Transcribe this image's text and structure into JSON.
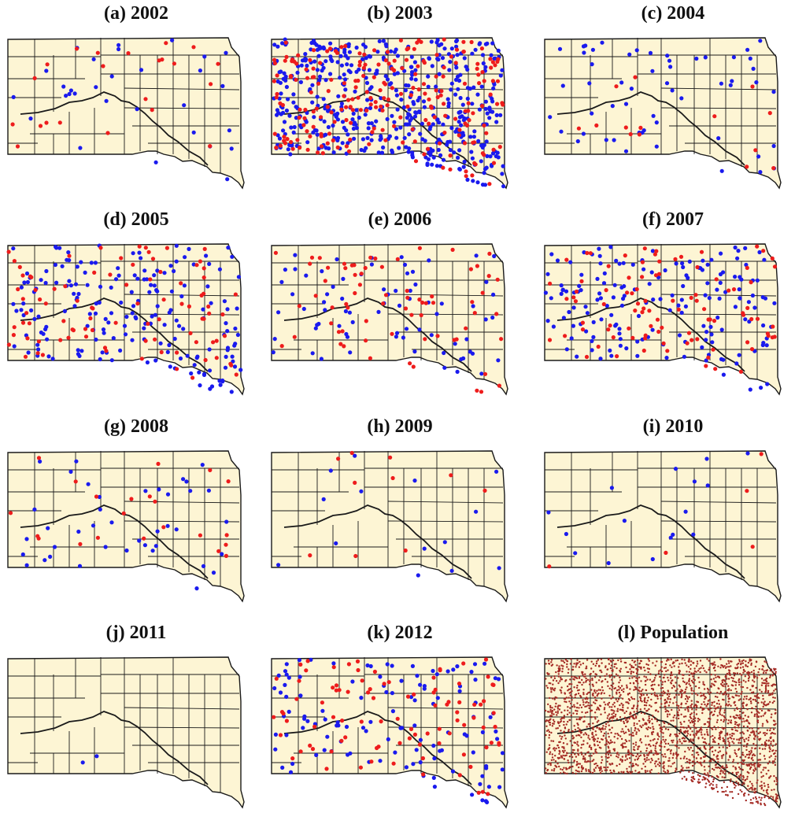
{
  "colors": {
    "land": "#fdf5d4",
    "border": "#1a1a1a",
    "dot_blue": "#1a1aee",
    "dot_red": "#ee1c1c",
    "population": "#a42a24"
  },
  "panels": [
    {
      "title": "(a) 2002",
      "density": {
        "blue": 30,
        "red": 22
      }
    },
    {
      "title": "(b) 2003",
      "density": {
        "blue": 520,
        "red": 230
      }
    },
    {
      "title": "(c) 2004",
      "density": {
        "blue": 55,
        "red": 14
      }
    },
    {
      "title": "(d) 2005",
      "density": {
        "blue": 190,
        "red": 90
      }
    },
    {
      "title": "(e) 2006",
      "density": {
        "blue": 75,
        "red": 70
      }
    },
    {
      "title": "(f) 2007",
      "density": {
        "blue": 170,
        "red": 95
      }
    },
    {
      "title": "(g) 2008",
      "density": {
        "blue": 40,
        "red": 22
      }
    },
    {
      "title": "(h) 2009",
      "density": {
        "blue": 14,
        "red": 10
      }
    },
    {
      "title": "(i) 2010",
      "density": {
        "blue": 16,
        "red": 5
      }
    },
    {
      "title": "(j) 2011",
      "density": {
        "blue": 2,
        "red": 0
      }
    },
    {
      "title": "(k) 2012",
      "density": {
        "blue": 120,
        "red": 95
      }
    },
    {
      "title": "(l) Population",
      "density": {
        "population": 2600
      }
    }
  ]
}
